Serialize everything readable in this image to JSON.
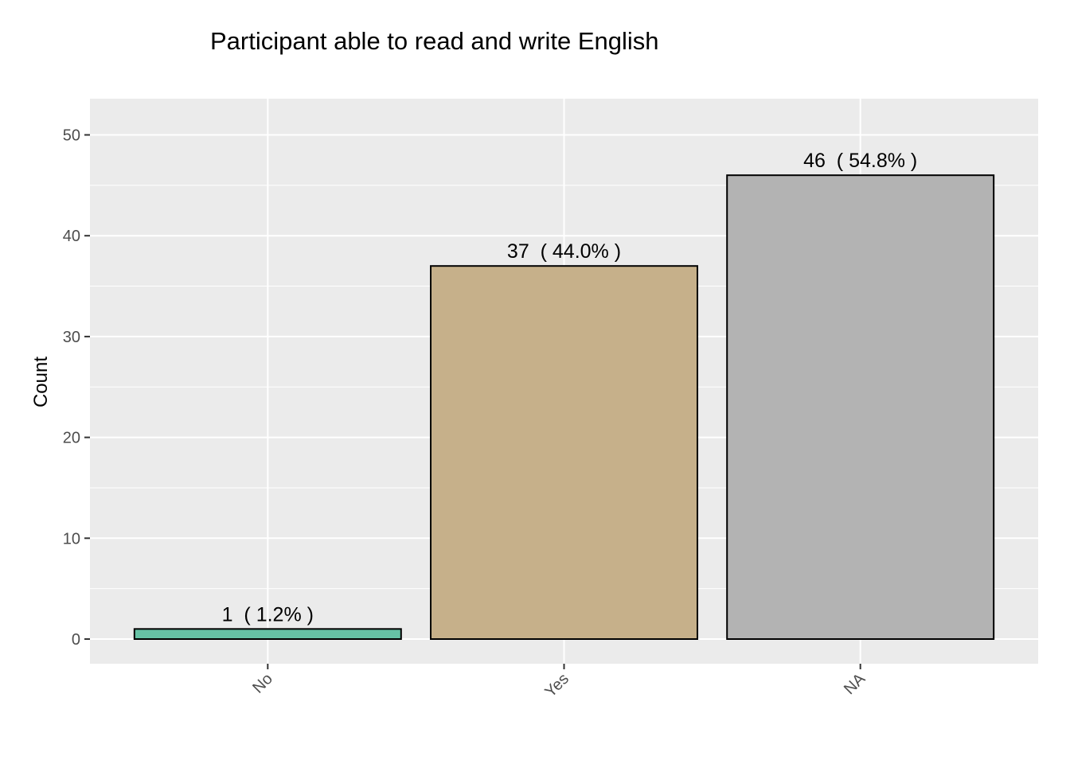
{
  "chart_data": {
    "type": "bar",
    "title": "Participant able to read and write English",
    "xlabel": "",
    "ylabel": "Count",
    "categories": [
      "No",
      "Yes",
      "NA"
    ],
    "values": [
      1,
      37,
      46
    ],
    "data_labels": [
      "1  ( 1.2% )",
      "37  ( 44.0% )",
      "46  ( 54.8% )"
    ],
    "colors": [
      "#66c2a5",
      "#c6b08a",
      "#b3b3b3"
    ],
    "ylim": [
      0,
      52.5
    ],
    "yticks": [
      0,
      10,
      20,
      30,
      40,
      50
    ],
    "ytick_labels": [
      "0",
      "10",
      "20",
      "30",
      "40",
      "50"
    ],
    "xtick_rotation": -45,
    "grid": true,
    "panel_background": "#ebebeb",
    "legend": "none"
  }
}
